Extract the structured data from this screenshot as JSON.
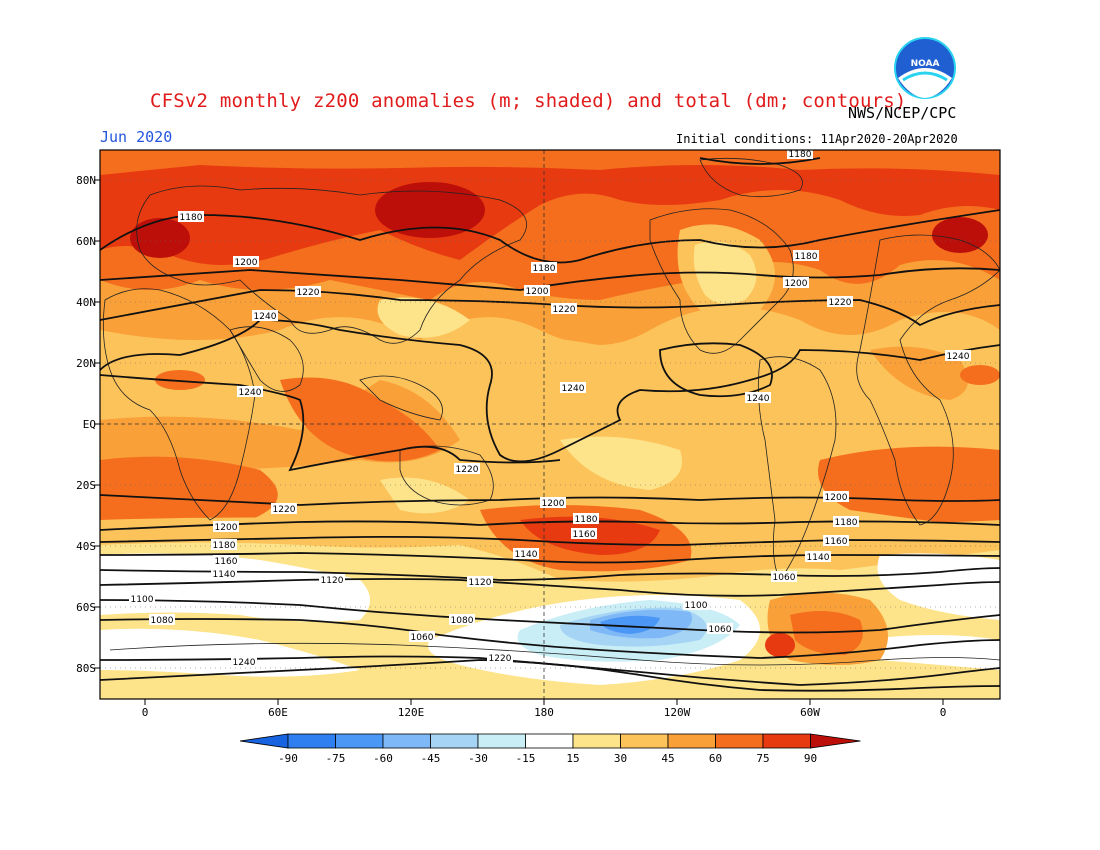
{
  "header": {
    "title": "CFSv2 monthly z200 anomalies (m; shaded) and total (dm; contours)",
    "agency": "NWS/NCEP/CPC",
    "month": "Jun 2020",
    "initial_conditions": "Initial conditions: 11Apr2020-20Apr2020"
  },
  "logo": {
    "text": "NOAA",
    "icon": "noaa-logo-icon"
  },
  "axes": {
    "lat_labels": [
      "80N",
      "60N",
      "40N",
      "20N",
      "EQ",
      "20S",
      "40S",
      "60S",
      "80S"
    ],
    "lon_labels": [
      "0",
      "60E",
      "120E",
      "180",
      "120W",
      "60W",
      "0"
    ]
  },
  "colorbar": {
    "labels": [
      "-90",
      "-75",
      "-60",
      "-45",
      "-30",
      "-15",
      "15",
      "30",
      "45",
      "60",
      "75",
      "90"
    ],
    "colors": [
      "#1763e0",
      "#2f7ff0",
      "#4b97f5",
      "#7fb8f7",
      "#a6d4f5",
      "#c9eef6",
      "#ffffff",
      "#fde38a",
      "#fcc35a",
      "#f9a038",
      "#f46e1e",
      "#e83a10",
      "#bd0f0a"
    ]
  },
  "contour_labels": [
    "1180",
    "1180",
    "1200",
    "1220",
    "1240",
    "1180",
    "1200",
    "1220",
    "1240",
    "1180",
    "1200",
    "1220",
    "1240",
    "1240",
    "1240",
    "1220",
    "1200",
    "1180",
    "1160",
    "1140",
    "1120",
    "1100",
    "1080",
    "1060",
    "1240",
    "1220",
    "1200",
    "1180",
    "1160",
    "1140",
    "1120",
    "1100",
    "1080",
    "1060",
    "1220",
    "1200",
    "1180",
    "1160",
    "1140",
    "1060"
  ]
}
